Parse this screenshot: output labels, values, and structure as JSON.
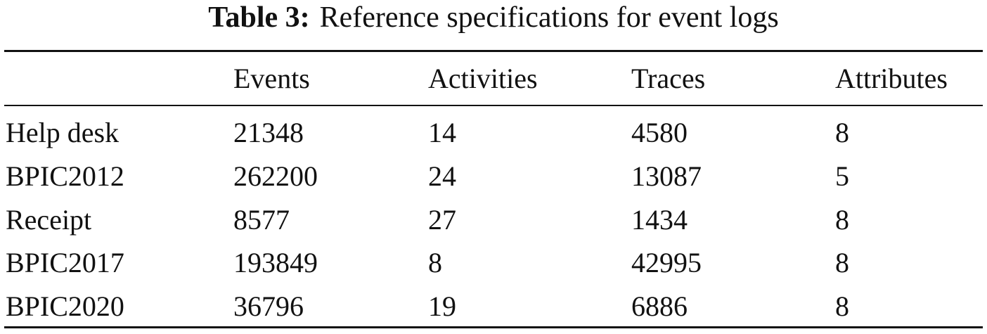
{
  "caption": {
    "label": "Table 3:",
    "text": "Reference specifications for event logs"
  },
  "table": {
    "columns": [
      "Events",
      "Activities",
      "Traces",
      "Attributes"
    ],
    "rows": [
      [
        "Help desk",
        21348,
        14,
        4580,
        8
      ],
      [
        "BPIC2012",
        262200,
        24,
        13087,
        5
      ],
      [
        "Receipt",
        8577,
        27,
        1434,
        8
      ],
      [
        "BPIC2017",
        193849,
        8,
        42995,
        8
      ],
      [
        "BPIC2020",
        36796,
        19,
        6886,
        8
      ]
    ]
  }
}
